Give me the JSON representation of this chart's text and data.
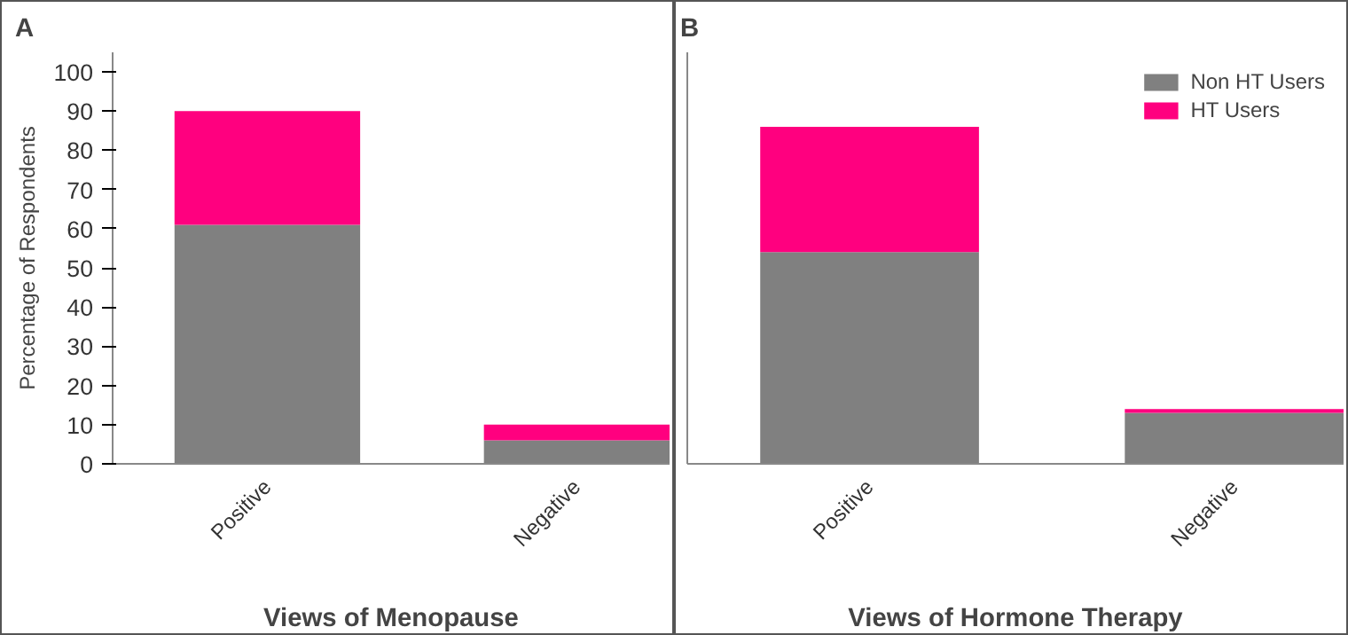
{
  "chart_data": [
    {
      "type": "bar",
      "title": "A",
      "xlabel": "Views of Menopause",
      "ylabel": "Percentage of Respondents",
      "categories": [
        "Positive",
        "Negative"
      ],
      "stacked": true,
      "ylim": [
        0,
        105
      ],
      "yticks": [
        0,
        10,
        20,
        30,
        40,
        50,
        60,
        70,
        80,
        90,
        100
      ],
      "grid": false,
      "legend": false,
      "series": [
        {
          "color": "#808080",
          "values": [
            61,
            6
          ]
        },
        {
          "color": "#ff007f",
          "values": [
            29,
            4
          ]
        }
      ]
    },
    {
      "type": "bar",
      "title": "B",
      "xlabel": "Views of Hormone Therapy",
      "categories": [
        "Positive",
        "Negative"
      ],
      "stacked": true,
      "ylim": [
        0,
        105
      ],
      "tick_labels": "x",
      "grid": false,
      "legend": "top right",
      "series": [
        {
          "name": "Non HT Users",
          "color": "#808080",
          "values": [
            54,
            13
          ]
        },
        {
          "name": "HT Users",
          "color": "#ff007f",
          "values": [
            32,
            1
          ]
        }
      ]
    }
  ]
}
